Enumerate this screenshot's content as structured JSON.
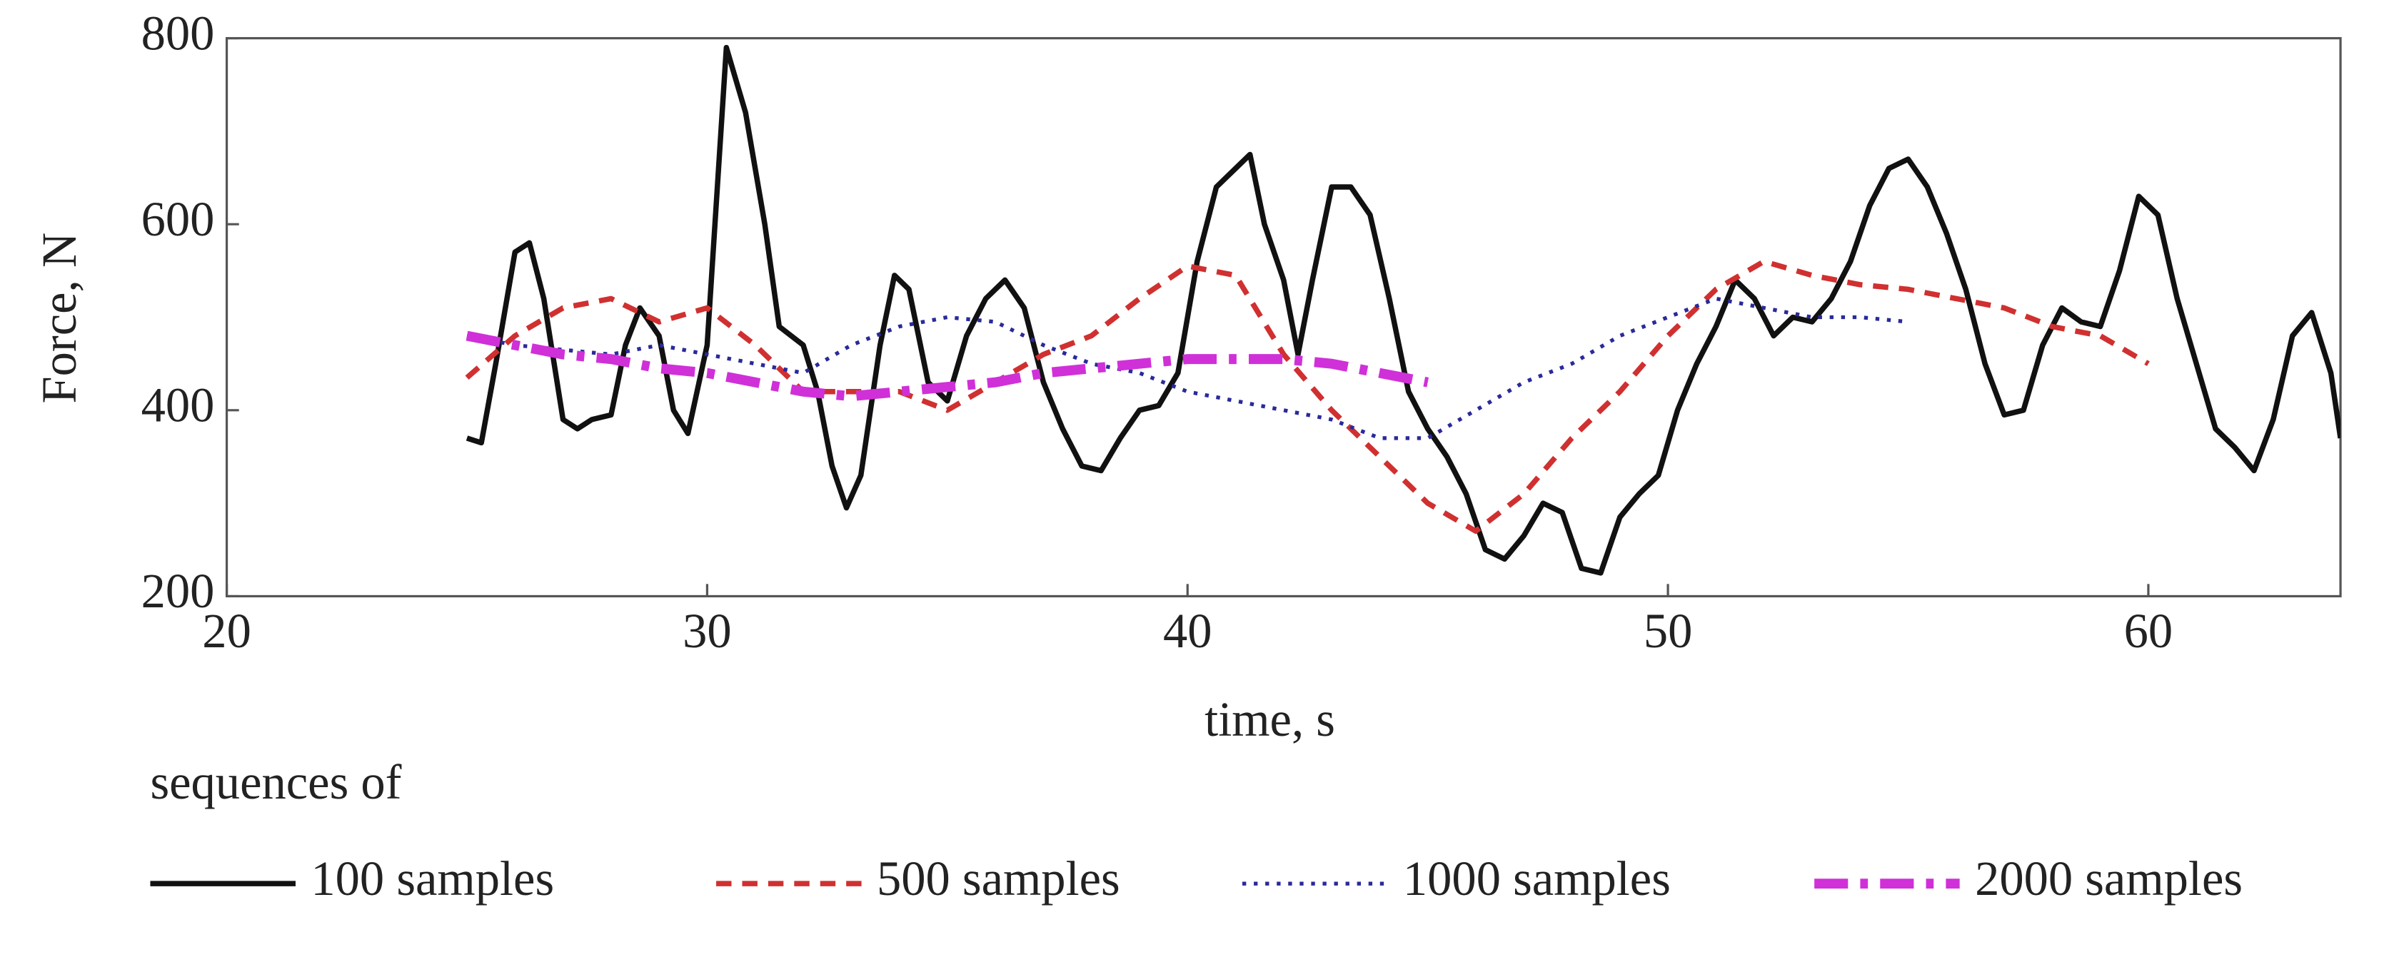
{
  "chart_data": {
    "type": "line",
    "xlabel": "time, s",
    "ylabel": "Force, N",
    "xlim": [
      20,
      64
    ],
    "ylim": [
      200,
      800
    ],
    "xticks": [
      20,
      30,
      40,
      50,
      60
    ],
    "yticks": [
      200,
      400,
      600,
      800
    ],
    "legend_title": "sequences of",
    "legend": "bottom",
    "series": [
      {
        "name": "100 samples",
        "color": "#111111",
        "style": "solid",
        "x": [
          25,
          25.3,
          25.6,
          26,
          26.3,
          26.6,
          27,
          27.3,
          27.6,
          28,
          28.3,
          28.6,
          29,
          29.3,
          29.6,
          30,
          30.4,
          30.8,
          31.2,
          31.5,
          32,
          32.3,
          32.6,
          32.9,
          33.2,
          33.6,
          33.9,
          34.2,
          34.6,
          35,
          35.4,
          35.8,
          36.2,
          36.6,
          37,
          37.4,
          37.8,
          38.2,
          38.6,
          39,
          39.4,
          39.8,
          40.2,
          40.6,
          41,
          41.3,
          41.6,
          42,
          42.3,
          42.6,
          43,
          43.4,
          43.8,
          44.2,
          44.6,
          45,
          45.4,
          45.8,
          46.2,
          46.6,
          47,
          47.4,
          47.8,
          48.2,
          48.6,
          49,
          49.4,
          49.8,
          50.2,
          50.6,
          51,
          51.4,
          51.8,
          52.2,
          52.6,
          53,
          53.4,
          53.8,
          54.2,
          54.6,
          55,
          55.4,
          55.8,
          56.2,
          56.6,
          57,
          57.4,
          57.8,
          58.2,
          58.6,
          59,
          59.4,
          59.8,
          60.2,
          60.6,
          61,
          61.4,
          61.8,
          62.2,
          62.6,
          63,
          63.4,
          63.8,
          64
        ],
        "values": [
          370,
          365,
          450,
          570,
          580,
          520,
          390,
          380,
          390,
          395,
          470,
          510,
          480,
          400,
          375,
          470,
          790,
          720,
          600,
          490,
          470,
          420,
          340,
          295,
          330,
          470,
          545,
          530,
          430,
          410,
          480,
          520,
          540,
          510,
          430,
          380,
          340,
          335,
          370,
          400,
          405,
          440,
          560,
          640,
          660,
          675,
          600,
          540,
          460,
          540,
          640,
          640,
          610,
          520,
          420,
          380,
          350,
          310,
          250,
          240,
          265,
          300,
          290,
          230,
          225,
          285,
          310,
          330,
          400,
          450,
          490,
          540,
          520,
          480,
          500,
          495,
          520,
          560,
          620,
          660,
          670,
          640,
          590,
          530,
          450,
          395,
          400,
          470,
          510,
          495,
          490,
          550,
          630,
          610,
          520,
          450,
          380,
          360,
          335,
          390,
          480,
          505,
          440,
          370
        ]
      },
      {
        "name": "500 samples",
        "color": "#d03030",
        "style": "dashed",
        "x": [
          25,
          26,
          27,
          28,
          29,
          30,
          31,
          32,
          33,
          34,
          35,
          36,
          37,
          38,
          39,
          40,
          41,
          42,
          43,
          44,
          45,
          46,
          47,
          48,
          49,
          50,
          51,
          52,
          53,
          54,
          55,
          56,
          57,
          58,
          59,
          60
        ],
        "values": [
          435,
          480,
          510,
          520,
          495,
          510,
          470,
          420,
          420,
          420,
          400,
          430,
          460,
          480,
          520,
          555,
          545,
          460,
          400,
          350,
          300,
          270,
          310,
          370,
          420,
          480,
          530,
          560,
          545,
          535,
          530,
          520,
          510,
          490,
          480,
          450
        ]
      },
      {
        "name": "1000 samples",
        "color": "#2a2a9a",
        "style": "dotted",
        "x": [
          25,
          26,
          27,
          28,
          29,
          30,
          31,
          32,
          33,
          34,
          35,
          36,
          37,
          38,
          39,
          40,
          41,
          42,
          43,
          44,
          45,
          46,
          47,
          48,
          49,
          50,
          51,
          52,
          53,
          54,
          55
        ],
        "values": [
          480,
          470,
          465,
          460,
          470,
          460,
          450,
          440,
          470,
          490,
          500,
          495,
          470,
          450,
          440,
          420,
          410,
          400,
          390,
          370,
          370,
          400,
          430,
          450,
          480,
          500,
          520,
          510,
          500,
          500,
          495
        ]
      },
      {
        "name": "2000 samples",
        "color": "#d030d8",
        "style": "dashdot",
        "x": [
          25,
          26,
          27,
          28,
          29,
          30,
          31,
          32,
          33,
          34,
          35,
          36,
          37,
          38,
          39,
          40,
          41,
          42,
          43,
          44,
          45
        ],
        "values": [
          480,
          470,
          460,
          455,
          445,
          440,
          430,
          420,
          415,
          420,
          425,
          430,
          440,
          445,
          450,
          455,
          455,
          455,
          450,
          440,
          430
        ]
      }
    ]
  }
}
